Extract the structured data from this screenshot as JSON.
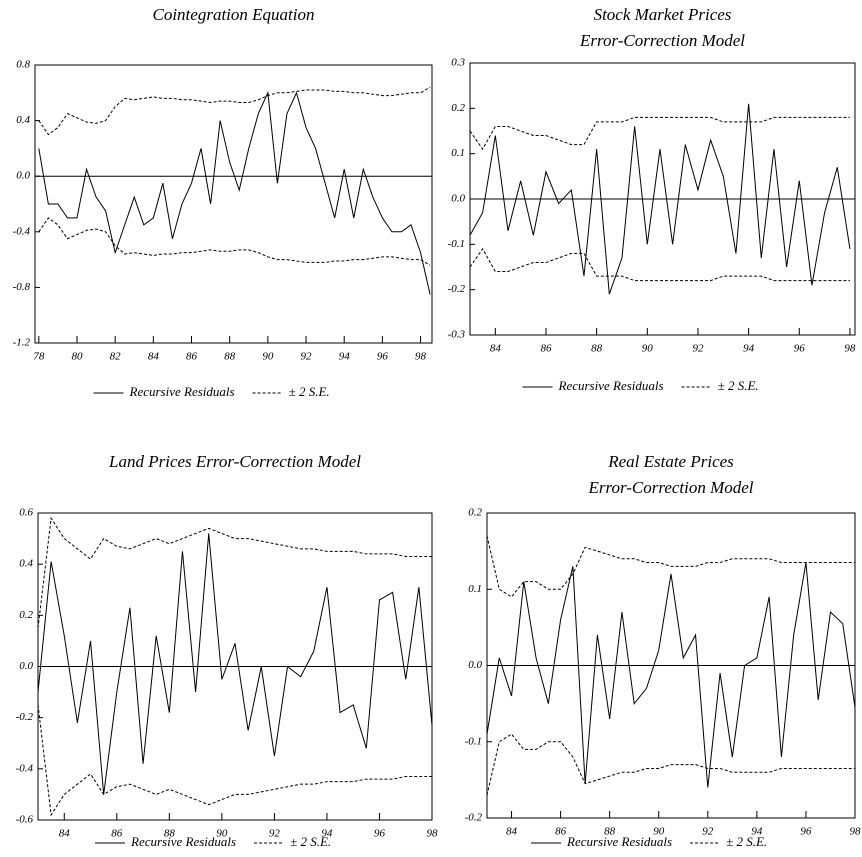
{
  "chart_data": [
    {
      "type": "line",
      "title": [
        "Cointegration Equation"
      ],
      "x": [
        78,
        78.5,
        79,
        79.5,
        80,
        80.5,
        81,
        81.5,
        82,
        82.5,
        83,
        83.5,
        84,
        84.5,
        85,
        85.5,
        86,
        86.5,
        87,
        87.5,
        88,
        88.5,
        89,
        89.5,
        90,
        90.5,
        91,
        91.5,
        92,
        92.5,
        93,
        93.5,
        94,
        94.5,
        95,
        95.5,
        96,
        96.5,
        97,
        97.5,
        98,
        98.5
      ],
      "series": [
        {
          "name": "Recursive Residuals",
          "color": "#000000",
          "style": "solid",
          "values": [
            0.2,
            -0.2,
            -0.2,
            -0.3,
            -0.3,
            0.05,
            -0.15,
            -0.25,
            -0.55,
            -0.35,
            -0.15,
            -0.35,
            -0.3,
            -0.05,
            -0.45,
            -0.2,
            -0.05,
            0.2,
            -0.2,
            0.4,
            0.1,
            -0.1,
            0.2,
            0.45,
            0.6,
            -0.05,
            0.45,
            0.6,
            0.35,
            0.2,
            -0.05,
            -0.3,
            0.05,
            -0.3,
            0.05,
            -0.15,
            -0.3,
            -0.4,
            -0.4,
            -0.35,
            -0.55,
            -0.85
          ]
        },
        {
          "name": "± 2 S.E.",
          "color": "#000000",
          "style": "dashed",
          "values": [
            0.4,
            0.3,
            0.35,
            0.45,
            0.42,
            0.39,
            0.38,
            0.4,
            0.5,
            0.56,
            0.55,
            0.56,
            0.57,
            0.56,
            0.56,
            0.55,
            0.55,
            0.54,
            0.53,
            0.54,
            0.54,
            0.53,
            0.53,
            0.55,
            0.58,
            0.6,
            0.6,
            0.61,
            0.62,
            0.62,
            0.62,
            0.61,
            0.61,
            0.6,
            0.6,
            0.59,
            0.58,
            0.58,
            0.59,
            0.6,
            0.6,
            0.64
          ],
          "lower": [
            -0.4,
            -0.3,
            -0.35,
            -0.45,
            -0.42,
            -0.39,
            -0.38,
            -0.4,
            -0.5,
            -0.56,
            -0.55,
            -0.56,
            -0.57,
            -0.56,
            -0.56,
            -0.55,
            -0.55,
            -0.54,
            -0.53,
            -0.54,
            -0.54,
            -0.53,
            -0.53,
            -0.55,
            -0.58,
            -0.6,
            -0.6,
            -0.61,
            -0.62,
            -0.62,
            -0.62,
            -0.61,
            -0.61,
            -0.6,
            -0.6,
            -0.59,
            -0.58,
            -0.58,
            -0.59,
            -0.6,
            -0.6,
            -0.64
          ]
        }
      ],
      "xlim": [
        77.8,
        98.6
      ],
      "xticks": [
        78,
        80,
        82,
        84,
        86,
        88,
        90,
        92,
        94,
        96,
        98
      ],
      "ylim": [
        -1.2,
        0.8
      ],
      "yticks": [
        0.8,
        0.4,
        {
          "value": 0,
          "label": "0.0"
        },
        -0.4,
        -0.8,
        -1.2
      ]
    },
    {
      "type": "line",
      "title": [
        "Stock Market Prices",
        "Error-Correction Model"
      ],
      "x": [
        83,
        83.5,
        84,
        84.5,
        85,
        85.5,
        86,
        86.5,
        87,
        87.5,
        88,
        88.5,
        89,
        89.5,
        90,
        90.5,
        91,
        91.5,
        92,
        92.5,
        93,
        93.5,
        94,
        94.5,
        95,
        95.5,
        96,
        96.5,
        97,
        97.5,
        98
      ],
      "series": [
        {
          "name": "Recursive Residuals",
          "color": "#000000",
          "style": "solid",
          "values": [
            -0.08,
            -0.03,
            0.14,
            -0.07,
            0.04,
            -0.08,
            0.06,
            -0.01,
            0.02,
            -0.17,
            0.11,
            -0.21,
            -0.13,
            0.16,
            -0.1,
            0.11,
            -0.1,
            0.12,
            0.02,
            0.13,
            0.05,
            -0.12,
            0.21,
            -0.13,
            0.11,
            -0.15,
            0.04,
            -0.19,
            -0.03,
            0.07,
            -0.11
          ]
        },
        {
          "name": "± 2 S.E.",
          "color": "#000000",
          "style": "dashed",
          "values": [
            0.15,
            0.11,
            0.16,
            0.16,
            0.15,
            0.14,
            0.14,
            0.13,
            0.12,
            0.12,
            0.17,
            0.17,
            0.17,
            0.18,
            0.18,
            0.18,
            0.18,
            0.18,
            0.18,
            0.18,
            0.17,
            0.17,
            0.17,
            0.17,
            0.18,
            0.18,
            0.18,
            0.18,
            0.18,
            0.18,
            0.18
          ],
          "lower": [
            -0.15,
            -0.11,
            -0.16,
            -0.16,
            -0.15,
            -0.14,
            -0.14,
            -0.13,
            -0.12,
            -0.12,
            -0.17,
            -0.17,
            -0.17,
            -0.18,
            -0.18,
            -0.18,
            -0.18,
            -0.18,
            -0.18,
            -0.18,
            -0.17,
            -0.17,
            -0.17,
            -0.17,
            -0.18,
            -0.18,
            -0.18,
            -0.18,
            -0.18,
            -0.18,
            -0.18
          ]
        }
      ],
      "xlim": [
        83,
        98.2
      ],
      "xticks": [
        84,
        86,
        88,
        90,
        92,
        94,
        96,
        98
      ],
      "ylim": [
        -0.3,
        0.3
      ],
      "yticks": [
        0.3,
        0.2,
        0.1,
        {
          "value": 0,
          "label": "0.0"
        },
        -0.1,
        -0.2,
        -0.3
      ]
    },
    {
      "type": "line",
      "title": [
        "Land Prices Error-Correction Model"
      ],
      "x": [
        83,
        83.5,
        84,
        84.5,
        85,
        85.5,
        86,
        86.5,
        87,
        87.5,
        88,
        88.5,
        89,
        89.5,
        90,
        90.5,
        91,
        91.5,
        92,
        92.5,
        93,
        93.5,
        94,
        94.5,
        95,
        95.5,
        96,
        96.5,
        97,
        97.5,
        98
      ],
      "series": [
        {
          "name": "Recursive Residuals",
          "color": "#000000",
          "style": "solid",
          "values": [
            -0.1,
            0.41,
            0.12,
            -0.22,
            0.1,
            -0.5,
            -0.1,
            0.23,
            -0.38,
            0.12,
            -0.18,
            0.45,
            -0.1,
            0.52,
            -0.05,
            0.09,
            -0.25,
            0,
            -0.35,
            0,
            -0.04,
            0.06,
            0.31,
            -0.18,
            -0.15,
            -0.32,
            0.26,
            0.29,
            -0.05,
            0.31,
            -0.23
          ]
        },
        {
          "name": "± 2 S.E.",
          "color": "#000000",
          "style": "dashed",
          "values": [
            0.15,
            0.58,
            0.5,
            0.46,
            0.42,
            0.5,
            0.47,
            0.46,
            0.48,
            0.5,
            0.48,
            0.5,
            0.52,
            0.54,
            0.52,
            0.5,
            0.5,
            0.49,
            0.48,
            0.47,
            0.46,
            0.46,
            0.45,
            0.45,
            0.45,
            0.44,
            0.44,
            0.44,
            0.43,
            0.43,
            0.43
          ],
          "lower": [
            -0.15,
            -0.58,
            -0.5,
            -0.46,
            -0.42,
            -0.5,
            -0.47,
            -0.46,
            -0.48,
            -0.5,
            -0.48,
            -0.5,
            -0.52,
            -0.54,
            -0.52,
            -0.5,
            -0.5,
            -0.49,
            -0.48,
            -0.47,
            -0.46,
            -0.46,
            -0.45,
            -0.45,
            -0.45,
            -0.44,
            -0.44,
            -0.44,
            -0.43,
            -0.43,
            -0.43
          ]
        }
      ],
      "xlim": [
        83,
        98
      ],
      "xticks": [
        84,
        86,
        88,
        90,
        92,
        94,
        96,
        98
      ],
      "ylim": [
        -0.6,
        0.6
      ],
      "yticks": [
        0.6,
        0.4,
        0.2,
        {
          "value": 0,
          "label": "0.0"
        },
        -0.2,
        -0.4,
        -0.6
      ]
    },
    {
      "type": "line",
      "title": [
        "Real Estate Prices",
        "Error-Correction Model"
      ],
      "x": [
        83,
        83.5,
        84,
        84.5,
        85,
        85.5,
        86,
        86.5,
        87,
        87.5,
        88,
        88.5,
        89,
        89.5,
        90,
        90.5,
        91,
        91.5,
        92,
        92.5,
        93,
        93.5,
        94,
        94.5,
        95,
        95.5,
        96,
        96.5,
        97,
        97.5,
        98
      ],
      "series": [
        {
          "name": "Recursive Residuals",
          "color": "#000000",
          "style": "solid",
          "values": [
            -0.09,
            0.01,
            -0.04,
            0.11,
            0.01,
            -0.05,
            0.06,
            0.13,
            -0.155,
            0.04,
            -0.07,
            0.07,
            -0.05,
            -0.03,
            0.02,
            0.12,
            0.01,
            0.04,
            -0.16,
            -0.01,
            -0.12,
            0,
            0.01,
            0.09,
            -0.12,
            0.04,
            0.135,
            -0.045,
            0.07,
            0.055,
            -0.055
          ]
        },
        {
          "name": "± 2 S.E.",
          "color": "#000000",
          "style": "dashed",
          "values": [
            0.17,
            0.1,
            0.09,
            0.11,
            0.11,
            0.1,
            0.1,
            0.12,
            0.155,
            0.15,
            0.145,
            0.14,
            0.14,
            0.135,
            0.135,
            0.13,
            0.13,
            0.13,
            0.135,
            0.135,
            0.14,
            0.14,
            0.14,
            0.14,
            0.135,
            0.135,
            0.135,
            0.135,
            0.135,
            0.135,
            0.135
          ],
          "lower": [
            -0.17,
            -0.1,
            -0.09,
            -0.11,
            -0.11,
            -0.1,
            -0.1,
            -0.12,
            -0.155,
            -0.15,
            -0.145,
            -0.14,
            -0.14,
            -0.135,
            -0.135,
            -0.13,
            -0.13,
            -0.13,
            -0.135,
            -0.135,
            -0.14,
            -0.14,
            -0.14,
            -0.14,
            -0.135,
            -0.135,
            -0.135,
            -0.135,
            -0.135,
            -0.135,
            -0.135
          ]
        }
      ],
      "xlim": [
        83,
        98
      ],
      "xticks": [
        84,
        86,
        88,
        90,
        92,
        94,
        96,
        98
      ],
      "ylim": [
        -0.2,
        0.2
      ],
      "yticks": [
        0.2,
        0.1,
        {
          "value": 0,
          "label": "0.0"
        },
        -0.1,
        -0.2
      ]
    }
  ]
}
